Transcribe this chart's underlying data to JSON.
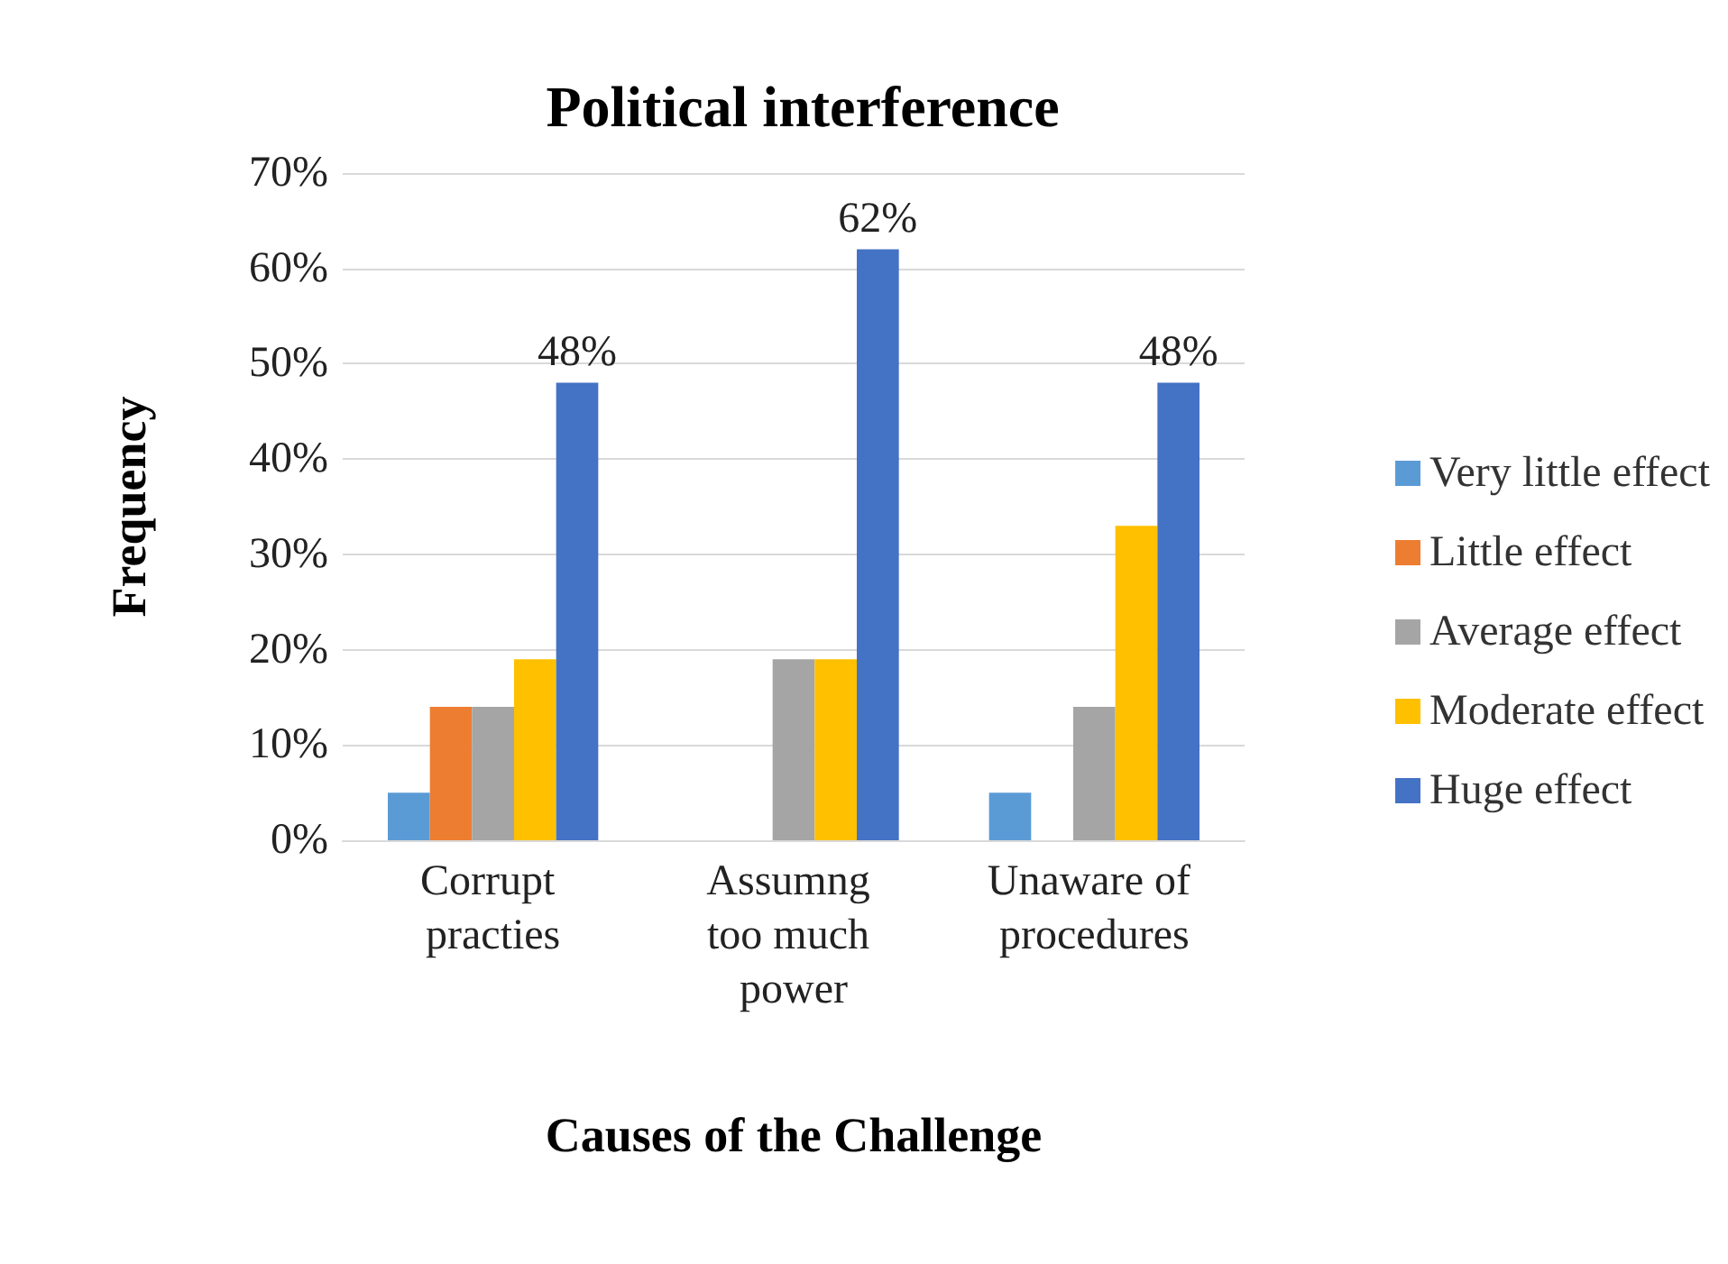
{
  "chart_data": {
    "type": "bar",
    "title": "Political interference",
    "xlabel": "Causes of the Challenge",
    "ylabel": "Frequency",
    "categories": [
      "Corrupt practies",
      "Assumng too much power",
      "Unaware of procedures"
    ],
    "series": [
      {
        "name": "Very little effect",
        "color": "#5b9bd5",
        "values": [
          5,
          0,
          5
        ]
      },
      {
        "name": "Little effect",
        "color": "#ed7d31",
        "values": [
          14,
          0,
          0
        ]
      },
      {
        "name": "Average effect",
        "color": "#a5a5a5",
        "values": [
          14,
          19,
          14
        ]
      },
      {
        "name": "Moderate effect",
        "color": "#ffc000",
        "values": [
          19,
          19,
          33
        ]
      },
      {
        "name": "Huge effect",
        "color": "#4472c4",
        "values": [
          48,
          62,
          48
        ],
        "value_labels": [
          "48%",
          "62%",
          "48%"
        ]
      }
    ],
    "ylim": [
      0,
      70
    ],
    "yticks": [
      {
        "value": 0,
        "label": "0%"
      },
      {
        "value": 10,
        "label": "10%"
      },
      {
        "value": 20,
        "label": "20%"
      },
      {
        "value": 30,
        "label": "30%"
      },
      {
        "value": 40,
        "label": "40%"
      },
      {
        "value": 50,
        "label": "50%"
      },
      {
        "value": 60,
        "label": "60%"
      },
      {
        "value": 70,
        "label": "70%"
      }
    ],
    "grid": "y",
    "legend": "right"
  }
}
